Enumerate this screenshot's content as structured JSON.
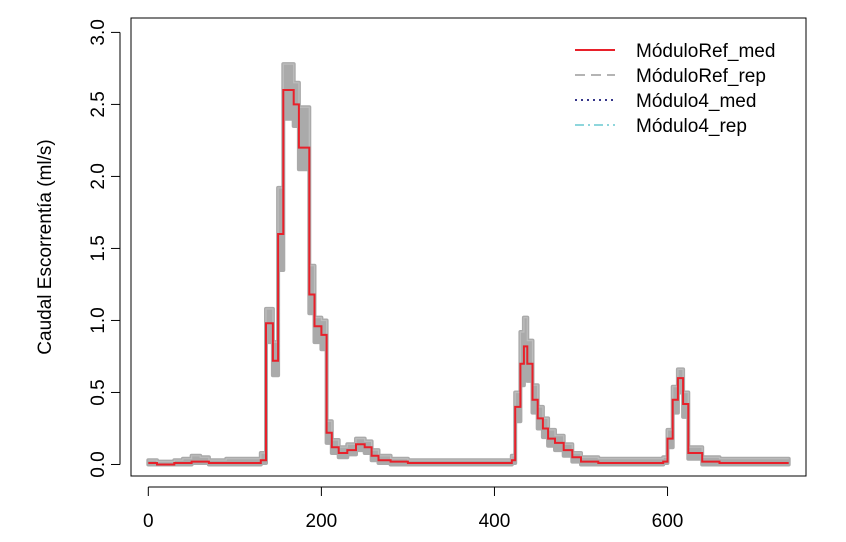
{
  "chart_data": {
    "type": "line",
    "title": "",
    "xlabel": "",
    "ylabel": "Caudal Escorrentía (ml/s)",
    "xlim": [
      -20,
      760
    ],
    "ylim": [
      -0.08,
      3.1
    ],
    "x_ticks": [
      0,
      200,
      400,
      600
    ],
    "y_ticks": [
      0.0,
      0.5,
      1.0,
      1.5,
      2.0,
      2.5,
      3.0
    ],
    "x_tick_labels": [
      "0",
      "200",
      "400",
      "600"
    ],
    "y_tick_labels": [
      "0.0",
      "0.5",
      "1.0",
      "1.5",
      "2.0",
      "2.5",
      "3.0"
    ],
    "grid": false,
    "legend_position": "top-right",
    "legend": [
      {
        "label": "MóduloRef_med",
        "color": "#e8202a",
        "style": "solid"
      },
      {
        "label": "MóduloRef_rep",
        "color": "#aaaaaa",
        "style": "dashed"
      },
      {
        "label": "Módulo4_med",
        "color": "#1a1a7a",
        "style": "dotted"
      },
      {
        "label": "Módulo4_rep",
        "color": "#7fd0d8",
        "style": "dashdot"
      }
    ],
    "series": [
      {
        "name": "MóduloRef_med",
        "color": "#e8202a",
        "step": true,
        "x": [
          0,
          10,
          20,
          30,
          40,
          50,
          60,
          70,
          80,
          90,
          100,
          110,
          120,
          130,
          136,
          144,
          150,
          156,
          168,
          174,
          186,
          192,
          200,
          206,
          212,
          220,
          230,
          240,
          250,
          258,
          266,
          280,
          300,
          330,
          360,
          390,
          410,
          420,
          424,
          430,
          434,
          438,
          444,
          450,
          456,
          462,
          470,
          480,
          490,
          500,
          520,
          550,
          580,
          595,
          600,
          606,
          612,
          618,
          624,
          640,
          660,
          700,
          740
        ],
        "y": [
          0.01,
          0.0,
          0.0,
          0.01,
          0.01,
          0.02,
          0.02,
          0.01,
          0.01,
          0.01,
          0.01,
          0.01,
          0.01,
          0.03,
          0.98,
          0.72,
          1.6,
          2.6,
          2.5,
          2.2,
          1.18,
          0.96,
          0.9,
          0.22,
          0.12,
          0.08,
          0.1,
          0.14,
          0.12,
          0.06,
          0.03,
          0.02,
          0.01,
          0.01,
          0.01,
          0.01,
          0.01,
          0.03,
          0.4,
          0.7,
          0.82,
          0.7,
          0.45,
          0.32,
          0.25,
          0.18,
          0.15,
          0.1,
          0.05,
          0.02,
          0.01,
          0.01,
          0.01,
          0.02,
          0.18,
          0.45,
          0.6,
          0.42,
          0.08,
          0.02,
          0.01,
          0.01,
          0.01
        ]
      },
      {
        "name": "MóduloRef_rep",
        "color": "#aaaaaa",
        "x": [
          0,
          10,
          20,
          30,
          40,
          50,
          60,
          70,
          80,
          90,
          100,
          110,
          120,
          130,
          136,
          144,
          150,
          156,
          168,
          174,
          186,
          192,
          200,
          206,
          212,
          220,
          230,
          240,
          250,
          258,
          266,
          280,
          300,
          330,
          360,
          390,
          410,
          420,
          424,
          430,
          434,
          438,
          444,
          450,
          456,
          462,
          470,
          480,
          490,
          500,
          520,
          550,
          580,
          595,
          600,
          606,
          612,
          618,
          624,
          640,
          660,
          700,
          740
        ],
        "low": [
          0.0,
          0.0,
          0.0,
          0.0,
          0.0,
          0.01,
          0.01,
          0.0,
          0.0,
          0.0,
          0.0,
          0.0,
          0.0,
          0.01,
          0.85,
          0.62,
          1.35,
          2.4,
          2.35,
          2.05,
          1.05,
          0.85,
          0.8,
          0.15,
          0.08,
          0.05,
          0.07,
          0.1,
          0.08,
          0.03,
          0.01,
          0.0,
          0.0,
          0.0,
          0.0,
          0.0,
          0.0,
          0.01,
          0.3,
          0.55,
          0.68,
          0.58,
          0.36,
          0.25,
          0.19,
          0.13,
          0.1,
          0.06,
          0.02,
          0.0,
          0.0,
          0.0,
          0.0,
          0.01,
          0.12,
          0.36,
          0.5,
          0.33,
          0.04,
          0.0,
          0.0,
          0.0,
          0.0
        ],
        "high": [
          0.03,
          0.02,
          0.02,
          0.03,
          0.04,
          0.06,
          0.05,
          0.03,
          0.03,
          0.04,
          0.04,
          0.04,
          0.04,
          0.08,
          1.08,
          0.85,
          1.92,
          2.78,
          2.65,
          2.48,
          1.38,
          1.02,
          1.0,
          0.3,
          0.17,
          0.12,
          0.14,
          0.18,
          0.16,
          0.1,
          0.06,
          0.04,
          0.03,
          0.03,
          0.03,
          0.03,
          0.03,
          0.06,
          0.5,
          0.92,
          1.02,
          0.86,
          0.55,
          0.4,
          0.32,
          0.24,
          0.2,
          0.14,
          0.08,
          0.05,
          0.04,
          0.04,
          0.04,
          0.05,
          0.24,
          0.54,
          0.66,
          0.5,
          0.12,
          0.05,
          0.04,
          0.04,
          0.04
        ]
      }
    ]
  }
}
